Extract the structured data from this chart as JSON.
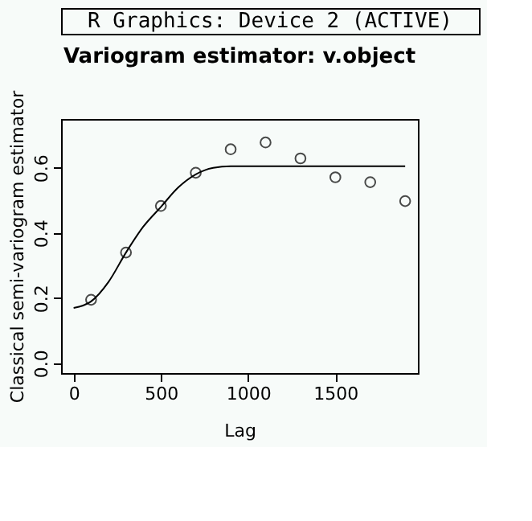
{
  "chart_data": {
    "type": "scatter",
    "title": "Variogram estimator: v.object",
    "annotations": [
      "R Graphics: Device 2 (ACTIVE)"
    ],
    "xlabel": "Lag",
    "ylabel": "Classical semi-variogram estimator",
    "xlim": [
      -72,
      1973
    ],
    "ylim": [
      -0.03,
      0.75
    ],
    "xticks": [
      0,
      500,
      1000,
      1500
    ],
    "yticks": [
      {
        "value": 0,
        "label": "0.0"
      },
      {
        "value": 0.2,
        "label": "0.2"
      },
      {
        "value": 0.4,
        "label": "0.4"
      },
      {
        "value": 0.6,
        "label": "0.6"
      }
    ],
    "grid": false,
    "series": [
      {
        "marker": "circle",
        "color": "#000000",
        "x": [
          100,
          300,
          500,
          700,
          900,
          1100,
          1300,
          1500,
          1700,
          1900
        ],
        "values": [
          0.195,
          0.34,
          0.483,
          0.585,
          0.657,
          0.678,
          0.629,
          0.571,
          0.556,
          0.498
        ]
      },
      {
        "type": "line",
        "marker": "none",
        "line_style": "solid",
        "color": "#000000",
        "x": [
          0,
          100,
          200,
          300,
          400,
          500,
          600,
          700,
          800,
          900,
          1900
        ],
        "values": [
          0.17,
          0.19,
          0.25,
          0.34,
          0.42,
          0.48,
          0.54,
          0.58,
          0.6,
          0.605,
          0.605
        ]
      }
    ]
  }
}
